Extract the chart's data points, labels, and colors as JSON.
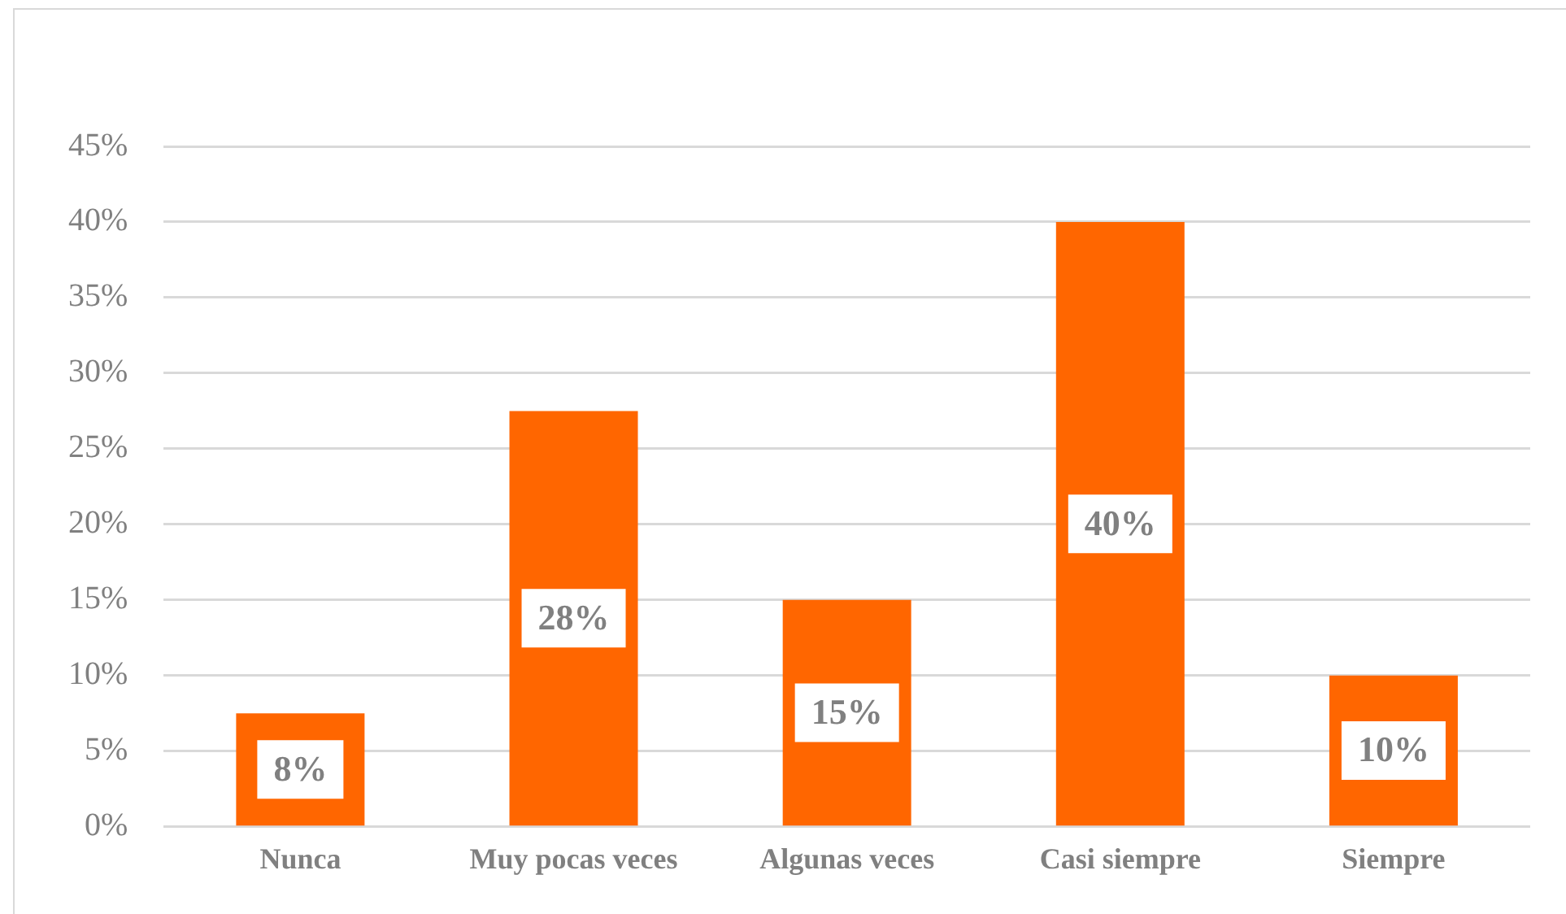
{
  "chart_data": {
    "type": "bar",
    "categories": [
      "Nunca",
      "Muy pocas veces",
      "Algunas veces",
      "Casi siempre",
      "Siempre"
    ],
    "values": [
      7.5,
      27.5,
      15,
      40,
      10
    ],
    "value_labels": [
      "8%",
      "28%",
      "15%",
      "40%",
      "10%"
    ],
    "color": "#ff6600",
    "ylim": [
      0,
      45
    ],
    "yticks": [
      {
        "value": 0,
        "label": "0%"
      },
      {
        "value": 5,
        "label": "5%"
      },
      {
        "value": 10,
        "label": "10%"
      },
      {
        "value": 15,
        "label": "15%"
      },
      {
        "value": 20,
        "label": "20%"
      },
      {
        "value": 25,
        "label": "25%"
      },
      {
        "value": 30,
        "label": "30%"
      },
      {
        "value": 35,
        "label": "35%"
      },
      {
        "value": 40,
        "label": "40%"
      },
      {
        "value": 45,
        "label": "45%"
      }
    ],
    "grid": "y",
    "legend": false
  }
}
